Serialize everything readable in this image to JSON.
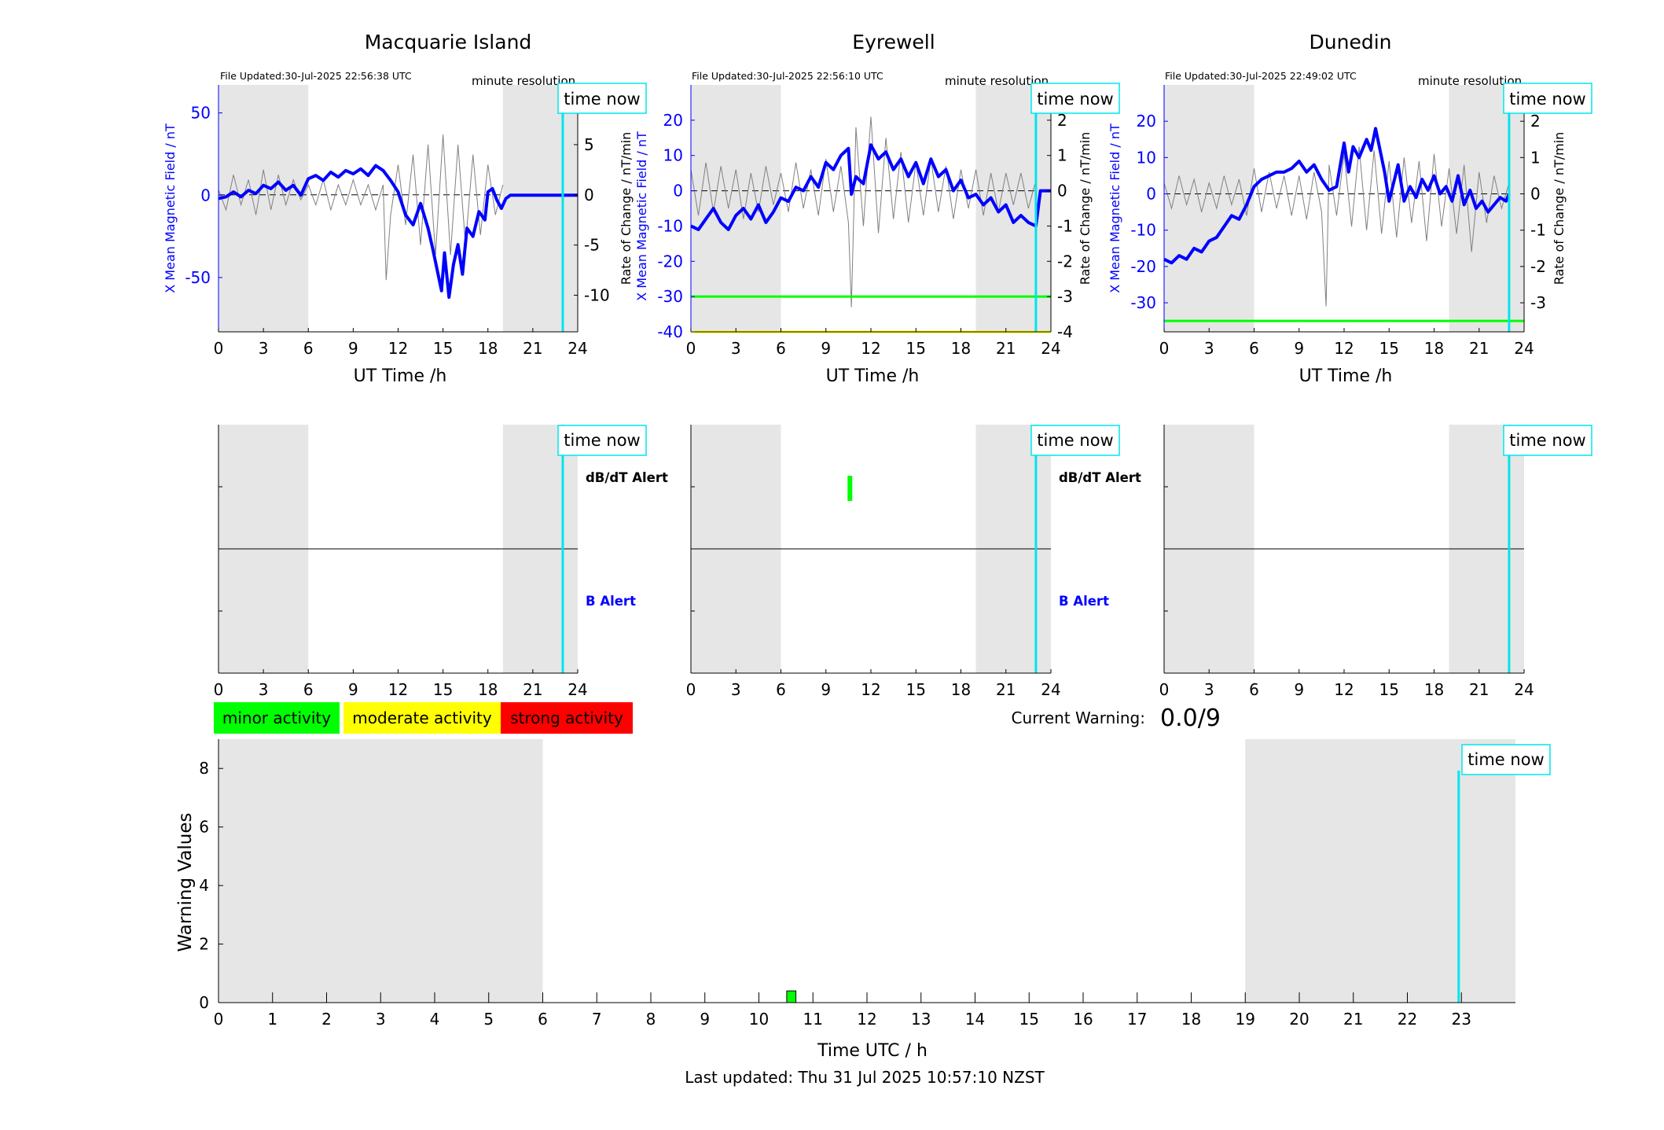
{
  "figure": {
    "last_updated": "Last updated: Thu 31 Jul 2025 10:57:10 NZST",
    "current_warning_label": "Current Warning:",
    "current_warning_value": "0.0/9"
  },
  "legend": {
    "minor": {
      "label": "minor activity",
      "color": "#00ff00"
    },
    "moderate": {
      "label": "moderate activity",
      "color": "#ffff00"
    },
    "strong": {
      "label": "strong activity",
      "color": "#ff0000"
    }
  },
  "labels": {
    "minute_resolution": "minute resolution",
    "time_now": "time now",
    "left_ylabel": "X Mean Magnetic Field / nT",
    "right_ylabel": "Rate of Change / nT/min",
    "ut_xlabel": "UT Time /h",
    "dbdt_alert": "dB/dT Alert",
    "b_alert": "B Alert"
  },
  "colors": {
    "field": "#0000ff",
    "rate": "#808080",
    "night": "#e6e6e6",
    "time_now": "#00e5ee"
  },
  "chart_data": [
    {
      "type": "line",
      "title": "Macquarie Island",
      "file_updated": "File Updated:30-Jul-2025 22:56:38 UTC",
      "xlabel": "UT Time /h",
      "xlim": [
        0,
        24
      ],
      "xticks": [
        0,
        3,
        6,
        9,
        12,
        15,
        18,
        21,
        24
      ],
      "ylim": [
        -83,
        67
      ],
      "yticks": [
        -50,
        0,
        50
      ],
      "y2lim": [
        -13.65,
        10.95
      ],
      "y2ticks": [
        -10,
        -5,
        0,
        5,
        10
      ],
      "night": [
        [
          0,
          6
        ],
        [
          19,
          24
        ]
      ],
      "time_now": 23,
      "thresholds": [],
      "series": [
        {
          "name": "X Mean Magnetic Field / nT",
          "axis": "left",
          "x": [
            0,
            0.5,
            1,
            1.5,
            2,
            2.5,
            3,
            3.5,
            4,
            4.5,
            5,
            5.5,
            6,
            6.5,
            7,
            7.5,
            8,
            8.5,
            9,
            9.5,
            10,
            10.5,
            11,
            11.5,
            12,
            12.5,
            13,
            13.5,
            14,
            14.3,
            14.6,
            14.9,
            15.1,
            15.4,
            15.7,
            16,
            16.3,
            16.6,
            17,
            17.4,
            17.8,
            18,
            18.3,
            18.6,
            18.9,
            19.2,
            19.5,
            20,
            21,
            22,
            23,
            24
          ],
          "y": [
            -2,
            -1,
            2,
            -1,
            3,
            1,
            6,
            4,
            8,
            3,
            6,
            0,
            10,
            12,
            9,
            14,
            11,
            15,
            13,
            16,
            12,
            18,
            15,
            9,
            2,
            -12,
            -18,
            -5,
            -20,
            -32,
            -45,
            -58,
            -35,
            -62,
            -42,
            -30,
            -48,
            -20,
            -25,
            -10,
            -15,
            2,
            4,
            -3,
            -8,
            -2,
            0,
            0,
            0,
            0,
            0,
            0
          ]
        },
        {
          "name": "Rate of Change / nT/min",
          "axis": "right",
          "x": [
            0,
            0.5,
            1,
            1.5,
            2,
            2.5,
            3,
            3.5,
            4,
            4.5,
            5,
            5.5,
            6,
            6.5,
            7,
            7.5,
            8,
            8.5,
            9,
            9.5,
            10,
            10.5,
            11,
            11.2,
            11.5,
            12,
            12.5,
            13,
            13.5,
            14,
            14.5,
            15,
            15.5,
            16,
            16.5,
            17,
            17.5,
            18,
            18.5,
            19
          ],
          "y": [
            0.5,
            -1.5,
            2,
            -1,
            1.5,
            -2,
            2.5,
            -1.5,
            2,
            -1,
            1.5,
            -0.5,
            1,
            -1,
            1.5,
            -1.5,
            1,
            -1,
            1.5,
            -1,
            1,
            -1.5,
            1,
            -8.5,
            -2,
            3,
            -3,
            4,
            -5,
            5,
            -6,
            6,
            -6,
            5,
            -5,
            4,
            -4,
            3,
            -2,
            1
          ]
        }
      ]
    },
    {
      "type": "line",
      "title": "Eyrewell",
      "file_updated": "File Updated:30-Jul-2025 22:56:10 UTC",
      "xlabel": "UT Time /h",
      "xlim": [
        0,
        24
      ],
      "xticks": [
        0,
        3,
        6,
        9,
        12,
        15,
        18,
        21,
        24
      ],
      "ylim": [
        -40,
        30
      ],
      "yticks": [
        -40,
        -30,
        -20,
        -10,
        0,
        10,
        20
      ],
      "y2lim": [
        -4,
        3
      ],
      "y2ticks": [
        -4,
        -3,
        -2,
        -1,
        0,
        1,
        2
      ],
      "night": [
        [
          0,
          6
        ],
        [
          19,
          24
        ]
      ],
      "time_now": 23,
      "thresholds": [
        {
          "value": -30,
          "axis": "left",
          "color": "#00ff00"
        },
        {
          "value": -40,
          "axis": "left",
          "color": "#ffff00"
        }
      ],
      "series": [
        {
          "name": "X Mean Magnetic Field / nT",
          "axis": "left",
          "x": [
            0,
            0.5,
            1,
            1.5,
            2,
            2.5,
            3,
            3.5,
            4,
            4.5,
            5,
            5.5,
            6,
            6.5,
            7,
            7.5,
            8,
            8.5,
            9,
            9.5,
            10,
            10.5,
            10.7,
            11,
            11.5,
            12,
            12.5,
            13,
            13.5,
            14,
            14.5,
            15,
            15.5,
            16,
            16.5,
            17,
            17.5,
            18,
            18.5,
            19,
            19.5,
            20,
            20.5,
            21,
            21.5,
            22,
            22.5,
            23,
            23.3,
            24
          ],
          "y": [
            -10,
            -11,
            -8,
            -5,
            -9,
            -11,
            -7,
            -5,
            -8,
            -4,
            -9,
            -6,
            -2,
            -3,
            1,
            0,
            4,
            1,
            8,
            6,
            10,
            12,
            -1,
            4,
            2,
            13,
            9,
            11,
            6,
            9,
            4,
            8,
            2,
            9,
            4,
            6,
            0,
            3,
            -2,
            -1,
            -4,
            -2,
            -6,
            -4,
            -9,
            -7,
            -9,
            -10,
            0,
            0
          ]
        },
        {
          "name": "Rate of Change / nT/min",
          "axis": "right",
          "x": [
            0,
            0.5,
            1,
            1.5,
            2,
            2.5,
            3,
            3.5,
            4,
            4.5,
            5,
            5.5,
            6,
            6.5,
            7,
            7.5,
            8,
            8.5,
            9,
            9.5,
            10,
            10.5,
            10.7,
            11,
            11.5,
            12,
            12.5,
            13,
            13.5,
            14,
            14.5,
            15,
            15.5,
            16,
            16.5,
            17,
            17.5,
            18,
            18.5,
            19,
            19.5,
            20,
            20.5,
            21,
            21.5,
            22,
            22.5,
            23
          ],
          "y": [
            0.6,
            -0.7,
            0.8,
            -0.6,
            0.7,
            -0.5,
            0.6,
            -0.8,
            0.5,
            -0.6,
            0.7,
            -0.4,
            0.5,
            -0.6,
            0.8,
            -0.5,
            0.6,
            -0.7,
            0.9,
            -0.6,
            0.7,
            -0.9,
            -3.3,
            1.8,
            -1,
            2.1,
            -1.2,
            1.5,
            -0.8,
            1.1,
            -0.9,
            0.8,
            -0.7,
            0.9,
            -0.6,
            0.7,
            -0.8,
            0.6,
            -0.5,
            0.6,
            -0.7,
            0.5,
            -0.6,
            0.5,
            -0.4,
            0.5,
            -0.5,
            0.3
          ]
        }
      ]
    },
    {
      "type": "line",
      "title": "Dunedin",
      "file_updated": "File Updated:30-Jul-2025 22:49:02 UTC",
      "xlabel": "UT Time /h",
      "xlim": [
        0,
        24
      ],
      "xticks": [
        0,
        3,
        6,
        9,
        12,
        15,
        18,
        21,
        24
      ],
      "ylim": [
        -38,
        30
      ],
      "yticks": [
        -30,
        -20,
        -10,
        0,
        10,
        20
      ],
      "y2lim": [
        -3.8,
        3
      ],
      "y2ticks": [
        -3,
        -2,
        -1,
        0,
        1,
        2
      ],
      "night": [
        [
          0,
          6
        ],
        [
          19,
          24
        ]
      ],
      "time_now": 23,
      "thresholds": [
        {
          "value": -35,
          "axis": "left",
          "color": "#00ff00"
        }
      ],
      "series": [
        {
          "name": "X Mean Magnetic Field / nT",
          "axis": "left",
          "x": [
            0,
            0.5,
            1,
            1.5,
            2,
            2.5,
            3,
            3.5,
            4,
            4.5,
            5,
            5.5,
            6,
            6.5,
            7,
            7.5,
            8,
            8.5,
            9,
            9.5,
            10,
            10.5,
            11,
            11.5,
            12,
            12.3,
            12.6,
            13,
            13.5,
            13.8,
            14.1,
            14.4,
            14.7,
            15,
            15.3,
            15.6,
            16,
            16.4,
            16.8,
            17.2,
            17.6,
            18,
            18.4,
            18.8,
            19.2,
            19.6,
            20,
            20.4,
            20.8,
            21.2,
            21.6,
            22,
            22.4,
            22.8,
            23
          ],
          "y": [
            -18,
            -19,
            -17,
            -18,
            -15,
            -16,
            -13,
            -12,
            -9,
            -6,
            -7,
            -3,
            2,
            4,
            5,
            6,
            6,
            7,
            9,
            6,
            8,
            4,
            1,
            2,
            14,
            6,
            13,
            10,
            15,
            12,
            18,
            12,
            6,
            -2,
            3,
            8,
            -2,
            2,
            -1,
            4,
            1,
            5,
            0,
            2,
            -2,
            5,
            -3,
            1,
            -4,
            -2,
            -5,
            -3,
            -1,
            -2,
            0
          ]
        },
        {
          "name": "Rate of Change / nT/min",
          "axis": "right",
          "x": [
            0,
            0.5,
            1,
            1.5,
            2,
            2.5,
            3,
            3.5,
            4,
            4.5,
            5,
            5.5,
            6,
            6.5,
            7,
            7.5,
            8,
            8.5,
            9,
            9.5,
            10,
            10.5,
            10.8,
            11,
            11.5,
            12,
            12.5,
            13,
            13.5,
            14,
            14.5,
            15,
            15.5,
            16,
            16.5,
            17,
            17.5,
            18,
            18.5,
            19,
            19.5,
            20,
            20.5,
            21,
            21.5,
            22,
            22.5,
            23
          ],
          "y": [
            0.3,
            -0.4,
            0.5,
            -0.3,
            0.4,
            -0.5,
            0.3,
            -0.4,
            0.5,
            -0.3,
            0.4,
            -0.6,
            0.7,
            -0.5,
            0.6,
            -0.4,
            0.5,
            -0.6,
            0.5,
            -0.7,
            0.6,
            -0.5,
            -3.1,
            0.8,
            -0.6,
            1.1,
            -0.9,
            1.3,
            -1,
            1.2,
            -1.1,
            0.9,
            -1.2,
            1,
            -0.8,
            0.9,
            -1.3,
            1.1,
            -0.9,
            0.7,
            -1.1,
            0.8,
            -1.6,
            0.6,
            -0.8,
            0.5,
            -0.4,
            0.3
          ]
        }
      ]
    },
    {
      "type": "bar",
      "title": "",
      "xlabel": "Time UTC / h",
      "ylabel": "Warning Values",
      "xlim": [
        0,
        24
      ],
      "xticks": [
        0,
        1,
        2,
        3,
        4,
        5,
        6,
        7,
        8,
        9,
        10,
        11,
        12,
        13,
        14,
        15,
        16,
        17,
        18,
        19,
        20,
        21,
        22,
        23
      ],
      "ylim": [
        0,
        9
      ],
      "yticks": [
        0,
        2,
        4,
        6,
        8
      ],
      "night": [
        [
          0,
          6
        ],
        [
          19,
          24
        ]
      ],
      "time_now": 22.95,
      "bars": [
        {
          "x": 10.6,
          "width": 0.17,
          "value": 0.4,
          "color": "#00ff00"
        }
      ]
    }
  ],
  "alerts": [
    {
      "station": "Macquarie Island",
      "show_labels": true,
      "dbdt_events": [],
      "b_events": []
    },
    {
      "station": "Eyrewell",
      "show_labels": true,
      "dbdt_events": [
        {
          "x": 10.6,
          "color": "#00ff00"
        }
      ],
      "b_events": []
    },
    {
      "station": "Dunedin",
      "show_labels": false,
      "dbdt_events": [],
      "b_events": []
    }
  ]
}
